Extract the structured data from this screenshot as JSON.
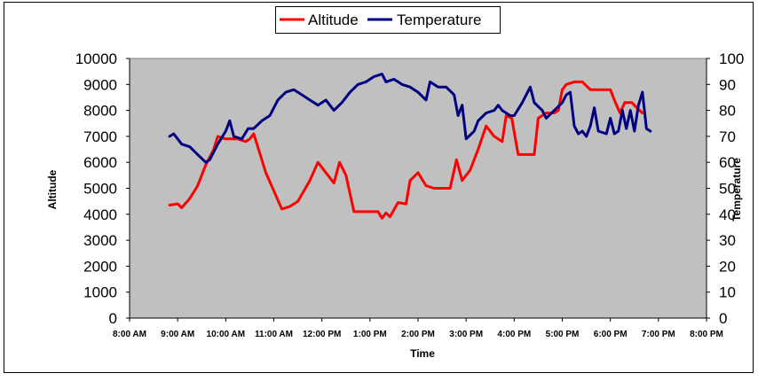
{
  "chart_data": {
    "type": "line",
    "title": "",
    "xlabel": "Time",
    "ylabel": "Altitude",
    "y2label": "Temperature",
    "ylim": [
      0,
      10000
    ],
    "y2lim": [
      0,
      100
    ],
    "xlim": [
      "8:00 AM",
      "8:00 PM"
    ],
    "yticks": [
      "0",
      "1000",
      "2000",
      "3000",
      "4000",
      "5000",
      "6000",
      "7000",
      "8000",
      "9000",
      "10000"
    ],
    "y2ticks": [
      "0",
      "10",
      "20",
      "30",
      "40",
      "50",
      "60",
      "70",
      "80",
      "90",
      "100"
    ],
    "xticks": [
      "8:00 AM",
      "9:00 AM",
      "10:00 AM",
      "11:00 AM",
      "12:00 PM",
      "1:00 PM",
      "2:00 PM",
      "3:00 PM",
      "4:00 PM",
      "5:00 PM",
      "6:00 PM",
      "7:00 PM",
      "8:00 PM"
    ],
    "grid": false,
    "legend_position": "top-center",
    "plot_background": "#c0c0c0",
    "series": [
      {
        "name": "Altitude",
        "axis": "left",
        "color": "#ff0000",
        "points": [
          [
            "8:50 AM",
            4350
          ],
          [
            "9:00 AM",
            4400
          ],
          [
            "9:05 AM",
            4250
          ],
          [
            "9:15 AM",
            4600
          ],
          [
            "9:25 AM",
            5100
          ],
          [
            "9:35 AM",
            5900
          ],
          [
            "9:45 AM",
            6500
          ],
          [
            "9:50 AM",
            7000
          ],
          [
            "10:00 AM",
            6900
          ],
          [
            "10:15 AM",
            6900
          ],
          [
            "10:25 AM",
            6800
          ],
          [
            "10:30 AM",
            6900
          ],
          [
            "10:35 AM",
            7100
          ],
          [
            "10:40 AM",
            6600
          ],
          [
            "10:50 AM",
            5600
          ],
          [
            "11:00 AM",
            4900
          ],
          [
            "11:10 AM",
            4200
          ],
          [
            "11:20 AM",
            4300
          ],
          [
            "11:30 AM",
            4500
          ],
          [
            "11:45 AM",
            5300
          ],
          [
            "11:55 AM",
            6000
          ],
          [
            "12:05 PM",
            5600
          ],
          [
            "12:15 PM",
            5200
          ],
          [
            "12:22 PM",
            6000
          ],
          [
            "12:30 PM",
            5500
          ],
          [
            "12:40 PM",
            4100
          ],
          [
            "1:00 PM",
            4100
          ],
          [
            "1:10 PM",
            4100
          ],
          [
            "1:15 PM",
            3850
          ],
          [
            "1:20 PM",
            4050
          ],
          [
            "1:25 PM",
            3900
          ],
          [
            "1:35 PM",
            4450
          ],
          [
            "1:45 PM",
            4400
          ],
          [
            "1:50 PM",
            5300
          ],
          [
            "2:00 PM",
            5600
          ],
          [
            "2:10 PM",
            5100
          ],
          [
            "2:20 PM",
            5000
          ],
          [
            "2:30 PM",
            5000
          ],
          [
            "2:40 PM",
            5000
          ],
          [
            "2:48 PM",
            6100
          ],
          [
            "2:55 PM",
            5300
          ],
          [
            "3:05 PM",
            5700
          ],
          [
            "3:15 PM",
            6500
          ],
          [
            "3:25 PM",
            7400
          ],
          [
            "3:35 PM",
            7000
          ],
          [
            "3:45 PM",
            6800
          ],
          [
            "3:50 PM",
            7800
          ],
          [
            "3:57 PM",
            7700
          ],
          [
            "4:05 PM",
            6300
          ],
          [
            "4:25 PM",
            6300
          ],
          [
            "4:30 PM",
            7700
          ],
          [
            "4:40 PM",
            7900
          ],
          [
            "4:50 PM",
            7900
          ],
          [
            "4:55 PM",
            8000
          ],
          [
            "5:00 PM",
            8800
          ],
          [
            "5:05 PM",
            9000
          ],
          [
            "5:15 PM",
            9100
          ],
          [
            "5:25 PM",
            9100
          ],
          [
            "5:35 PM",
            8800
          ],
          [
            "5:45 PM",
            8800
          ],
          [
            "5:50 PM",
            8800
          ],
          [
            "6:00 PM",
            8800
          ],
          [
            "6:05 PM",
            8400
          ],
          [
            "6:12 PM",
            7900
          ],
          [
            "6:18 PM",
            8300
          ],
          [
            "6:27 PM",
            8300
          ],
          [
            "6:33 PM",
            8100
          ],
          [
            "6:40 PM",
            7900
          ]
        ]
      },
      {
        "name": "Temperature",
        "axis": "right",
        "color": "#000080",
        "points": [
          [
            "8:50 AM",
            70
          ],
          [
            "8:55 AM",
            71
          ],
          [
            "9:00 AM",
            69
          ],
          [
            "9:05 AM",
            67
          ],
          [
            "9:15 AM",
            66
          ],
          [
            "9:25 AM",
            63
          ],
          [
            "9:35 AM",
            60
          ],
          [
            "9:40 AM",
            61
          ],
          [
            "9:50 AM",
            67
          ],
          [
            "10:00 AM",
            72
          ],
          [
            "10:05 AM",
            76
          ],
          [
            "10:10 AM",
            70
          ],
          [
            "10:20 AM",
            69
          ],
          [
            "10:28 AM",
            73
          ],
          [
            "10:35 AM",
            73
          ],
          [
            "10:45 AM",
            76
          ],
          [
            "10:55 AM",
            78
          ],
          [
            "11:05 AM",
            84
          ],
          [
            "11:15 AM",
            87
          ],
          [
            "11:25 AM",
            88
          ],
          [
            "11:35 AM",
            86
          ],
          [
            "11:45 AM",
            84
          ],
          [
            "11:55 AM",
            82
          ],
          [
            "12:05 PM",
            84
          ],
          [
            "12:15 PM",
            80
          ],
          [
            "12:25 PM",
            83
          ],
          [
            "12:35 PM",
            87
          ],
          [
            "12:45 PM",
            90
          ],
          [
            "12:55 PM",
            91
          ],
          [
            "1:05 PM",
            93
          ],
          [
            "1:15 PM",
            94
          ],
          [
            "1:20 PM",
            91
          ],
          [
            "1:30 PM",
            92
          ],
          [
            "1:40 PM",
            90
          ],
          [
            "1:50 PM",
            89
          ],
          [
            "2:00 PM",
            87
          ],
          [
            "2:10 PM",
            84
          ],
          [
            "2:15 PM",
            91
          ],
          [
            "2:25 PM",
            89
          ],
          [
            "2:35 PM",
            89
          ],
          [
            "2:45 PM",
            86
          ],
          [
            "2:50 PM",
            78
          ],
          [
            "2:55 PM",
            82
          ],
          [
            "3:00 PM",
            69
          ],
          [
            "3:10 PM",
            72
          ],
          [
            "3:15 PM",
            76
          ],
          [
            "3:25 PM",
            79
          ],
          [
            "3:35 PM",
            80
          ],
          [
            "3:40 PM",
            82
          ],
          [
            "3:45 PM",
            80
          ],
          [
            "3:55 PM",
            78
          ],
          [
            "4:00 PM",
            78
          ],
          [
            "4:10 PM",
            83
          ],
          [
            "4:20 PM",
            89
          ],
          [
            "4:25 PM",
            83
          ],
          [
            "4:35 PM",
            80
          ],
          [
            "4:40 PM",
            77
          ],
          [
            "4:50 PM",
            80
          ],
          [
            "5:00 PM",
            83
          ],
          [
            "5:05 PM",
            86
          ],
          [
            "5:10 PM",
            87
          ],
          [
            "5:15 PM",
            74
          ],
          [
            "5:20 PM",
            71
          ],
          [
            "5:25 PM",
            72
          ],
          [
            "5:30 PM",
            70
          ],
          [
            "5:35 PM",
            74
          ],
          [
            "5:40 PM",
            81
          ],
          [
            "5:45 PM",
            72
          ],
          [
            "5:55 PM",
            71
          ],
          [
            "6:00 PM",
            77
          ],
          [
            "6:05 PM",
            71
          ],
          [
            "6:10 PM",
            72
          ],
          [
            "6:15 PM",
            80
          ],
          [
            "6:20 PM",
            73
          ],
          [
            "6:25 PM",
            80
          ],
          [
            "6:30 PM",
            72
          ],
          [
            "6:35 PM",
            82
          ],
          [
            "6:40 PM",
            87
          ],
          [
            "6:45 PM",
            73
          ],
          [
            "6:50 PM",
            72
          ]
        ]
      }
    ]
  }
}
